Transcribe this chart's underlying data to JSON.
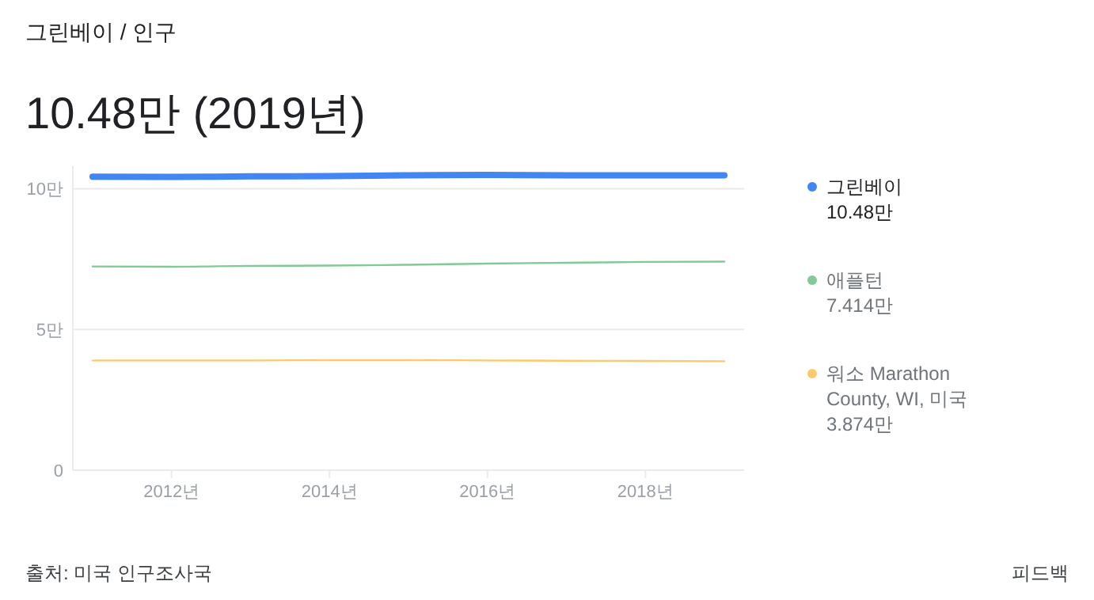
{
  "chart_data": {
    "type": "line",
    "subtitle": "그린베이 / 인구",
    "title": "10.48만 (2019년)",
    "x": [
      2011,
      2012,
      2013,
      2014,
      2015,
      2016,
      2017,
      2018,
      2019
    ],
    "xlim": [
      2010.75,
      2019.25
    ],
    "xticks": [
      {
        "value": 2012,
        "label": "2012년"
      },
      {
        "value": 2014,
        "label": "2014년"
      },
      {
        "value": 2016,
        "label": "2016년"
      },
      {
        "value": 2018,
        "label": "2018년"
      }
    ],
    "ylim": [
      0,
      10.8
    ],
    "yticks": [
      {
        "value": 0,
        "label": "0"
      },
      {
        "value": 5,
        "label": "5만"
      },
      {
        "value": 10,
        "label": "10만"
      }
    ],
    "grid": "y",
    "legend": "right",
    "series": [
      {
        "name": "그린베이",
        "color": "#4285f4",
        "values": [
          10.43,
          10.42,
          10.44,
          10.45,
          10.48,
          10.49,
          10.48,
          10.48,
          10.48
        ]
      },
      {
        "name": "애플턴",
        "color": "#81c995",
        "values": [
          7.24,
          7.23,
          7.26,
          7.27,
          7.3,
          7.34,
          7.37,
          7.4,
          7.41
        ]
      },
      {
        "name": "워소 Marathon County, WI, 미국",
        "color": "#fcc96e",
        "values": [
          3.9,
          3.9,
          3.9,
          3.91,
          3.91,
          3.9,
          3.89,
          3.88,
          3.87
        ]
      }
    ],
    "annotations": [
      "10.48만",
      "7.414만",
      "3.874만",
      "출처: 미국 인구조사국",
      "피드백"
    ]
  }
}
